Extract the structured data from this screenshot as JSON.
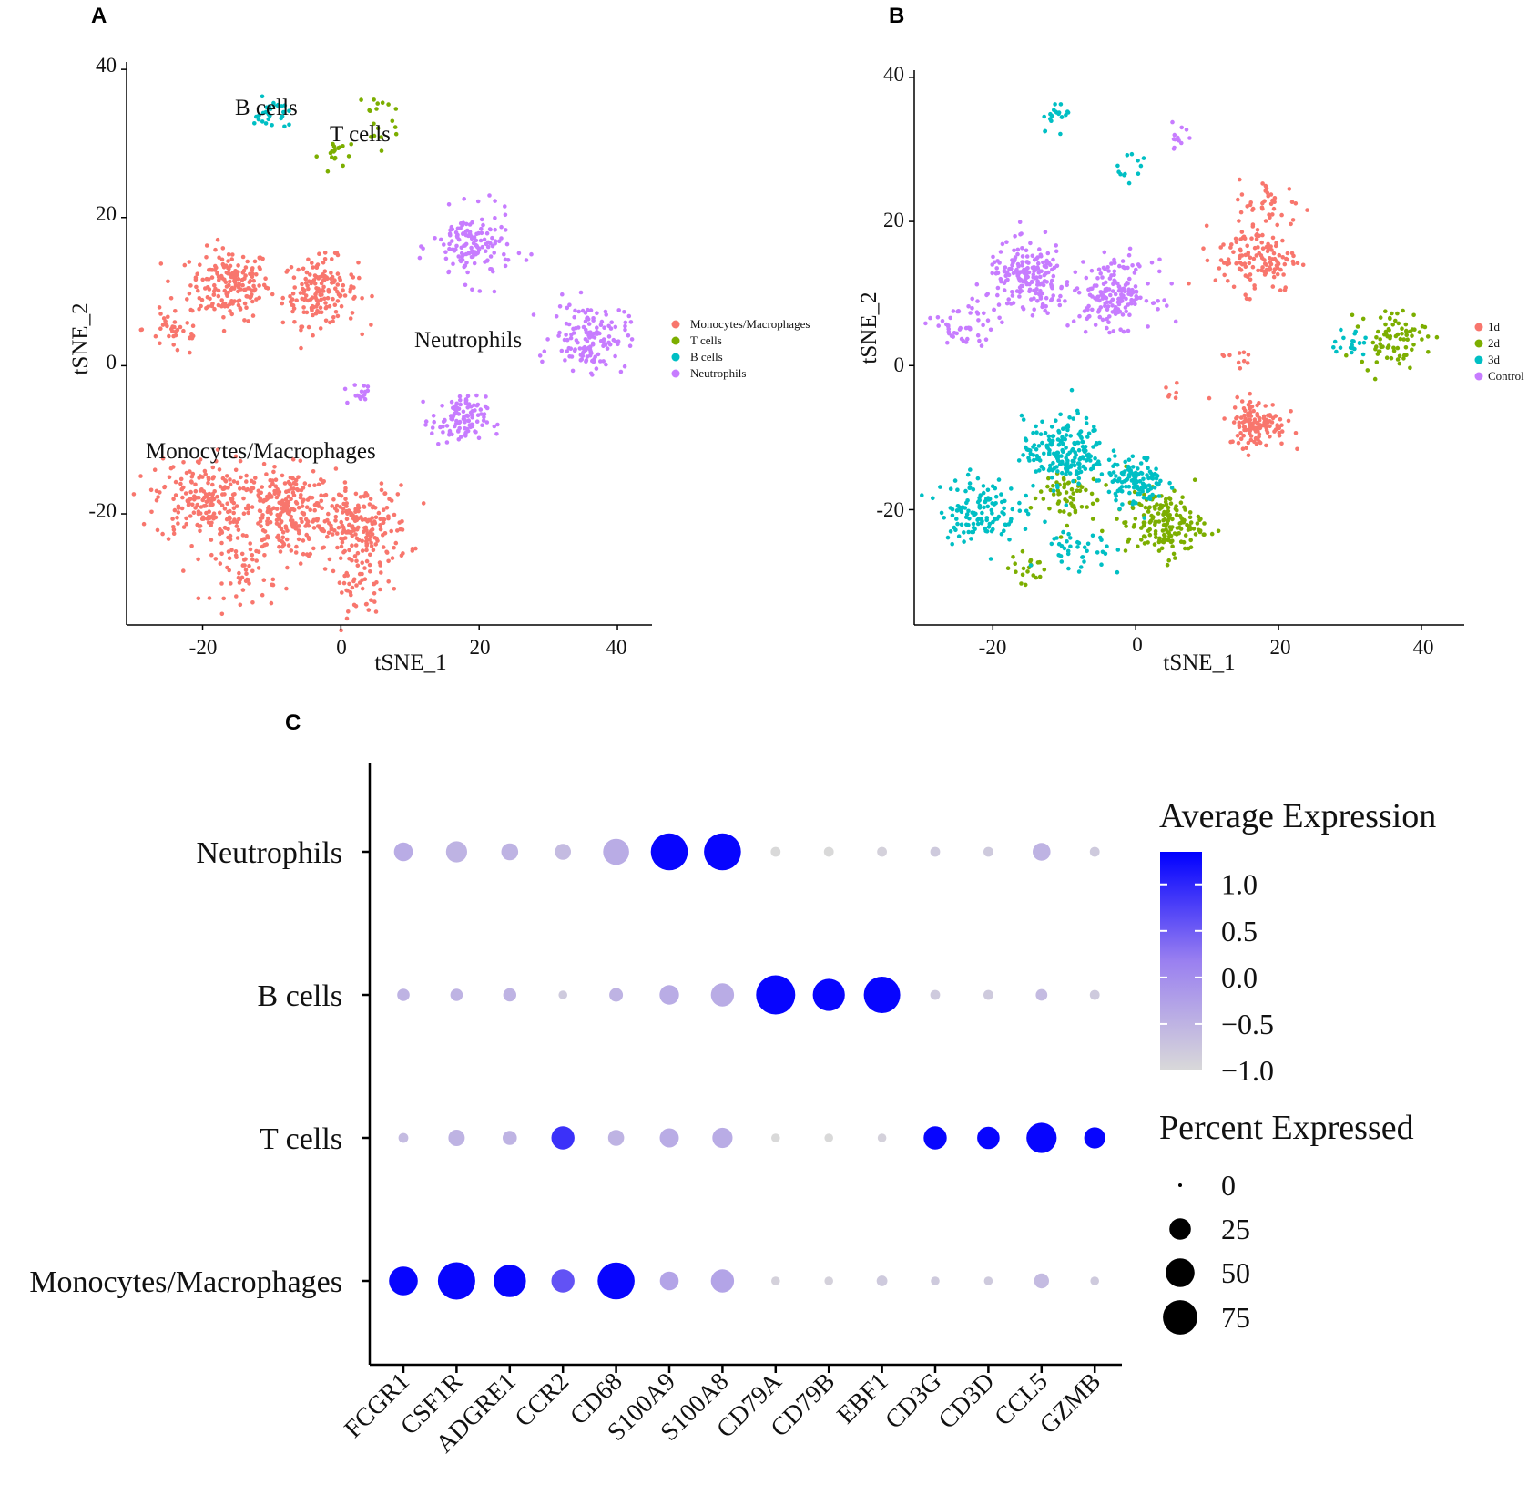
{
  "panels": {
    "A": {
      "letter": "A",
      "xlabel": "tSNE_1",
      "ylabel": "tSNE_2",
      "xticks": [
        "-20",
        "0",
        "20",
        "40"
      ],
      "yticks": [
        "40",
        "20",
        "0",
        "-20"
      ],
      "legend": [
        "Monocytes/Macrophages",
        "T cells",
        "B cells",
        "Neutrophils"
      ],
      "annotations": [
        "B cells",
        "T cells",
        "Neutrophils",
        "Monocytes/Macrophages"
      ]
    },
    "B": {
      "letter": "B",
      "xlabel": "tSNE_1",
      "ylabel": "tSNE_2",
      "xticks": [
        "-20",
        "0",
        "20",
        "40"
      ],
      "yticks": [
        "40",
        "20",
        "0",
        "-20"
      ],
      "legend": [
        "1d",
        "2d",
        "3d",
        "Control"
      ]
    },
    "C": {
      "letter": "C"
    }
  },
  "colors": {
    "red": "#F8766D",
    "green": "#7CAE00",
    "teal": "#00BFC4",
    "purple": "#C77CFF",
    "dot_low": "#D9D9D9",
    "dot_high": "#0000FF"
  },
  "chart_data": [
    {
      "type": "scatter",
      "title": "A",
      "xlabel": "tSNE_1",
      "ylabel": "tSNE_2",
      "xlim": [
        -31,
        45
      ],
      "ylim": [
        -35,
        41
      ],
      "legend_entries": [
        "Monocytes/Macrophages",
        "T cells",
        "B cells",
        "Neutrophils"
      ],
      "clusters": [
        {
          "name": "Monocytes/Macrophages",
          "color": "red",
          "centers": [
            [
              -16,
              11
            ],
            [
              -3,
              10
            ],
            [
              -24,
              5
            ],
            [
              -8,
              -20
            ],
            [
              -20,
              -18
            ],
            [
              3,
              -22
            ],
            [
              -14,
              -28
            ],
            [
              3,
              -30
            ]
          ],
          "n": [
            180,
            170,
            40,
            260,
            200,
            200,
            50,
            40
          ]
        },
        {
          "name": "T cells",
          "color": "green",
          "centers": [
            [
              -0.5,
              28.5
            ],
            [
              4.5,
              35
            ],
            [
              6,
              31.5
            ]
          ],
          "n": [
            18,
            10,
            8
          ]
        },
        {
          "name": "B cells",
          "color": "teal",
          "centers": [
            [
              -10,
              34
            ]
          ],
          "n": [
            30
          ]
        },
        {
          "name": "Neutrophils",
          "color": "purple",
          "centers": [
            [
              19,
              16
            ],
            [
              36,
              4
            ],
            [
              17,
              -7.5
            ],
            [
              3,
              -3.5
            ]
          ],
          "n": [
            140,
            140,
            110,
            15
          ]
        }
      ]
    },
    {
      "type": "scatter",
      "title": "B",
      "xlabel": "tSNE_1",
      "ylabel": "tSNE_2",
      "xlim": [
        -31,
        46
      ],
      "ylim": [
        -36,
        41
      ],
      "legend_entries": [
        "1d",
        "2d",
        "3d",
        "Control"
      ],
      "clusters": [
        {
          "name": "1d",
          "color": "red",
          "centers": [
            [
              17,
              15
            ],
            [
              19,
              22
            ],
            [
              17,
              -8
            ],
            [
              14,
              1
            ],
            [
              5,
              -4
            ]
          ],
          "n": [
            130,
            40,
            130,
            10,
            6
          ]
        },
        {
          "name": "2d",
          "color": "green",
          "centers": [
            [
              36,
              4
            ],
            [
              4,
              -22
            ],
            [
              -10,
              -18
            ],
            [
              -15,
              -28
            ]
          ],
          "n": [
            80,
            170,
            60,
            20
          ]
        },
        {
          "name": "3d",
          "color": "teal",
          "centers": [
            [
              -10,
              -12
            ],
            [
              -22,
              -20
            ],
            [
              0,
              -16
            ],
            [
              -8,
              -26
            ],
            [
              30,
              3
            ],
            [
              -11,
              35
            ],
            [
              0,
              28
            ]
          ],
          "n": [
            200,
            130,
            120,
            40,
            20,
            20,
            12
          ]
        },
        {
          "name": "Control",
          "color": "purple",
          "centers": [
            [
              -15,
              12
            ],
            [
              -3,
              10
            ],
            [
              -24,
              5
            ],
            [
              6,
              32
            ]
          ],
          "n": [
            200,
            180,
            50,
            12
          ]
        }
      ]
    },
    {
      "type": "dot",
      "title": "C",
      "genes": [
        "FCGR1",
        "CSF1R",
        "ADGRE1",
        "CCR2",
        "CD68",
        "S100A9",
        "S100A8",
        "CD79A",
        "CD79B",
        "EBF1",
        "CD3G",
        "CD3D",
        "CCL5",
        "GZMB"
      ],
      "groups": [
        "Neutrophils",
        "B cells",
        "T cells",
        "Monocytes/Macrophages"
      ],
      "avg_expression": [
        [
          -0.4,
          -0.5,
          -0.5,
          -0.6,
          -0.4,
          1.3,
          1.3,
          -1.0,
          -1.0,
          -0.9,
          -0.8,
          -0.8,
          -0.5,
          -0.8
        ],
        [
          -0.5,
          -0.5,
          -0.5,
          -0.8,
          -0.5,
          -0.4,
          -0.4,
          1.3,
          1.3,
          1.3,
          -0.8,
          -0.8,
          -0.6,
          -0.8
        ],
        [
          -0.6,
          -0.5,
          -0.5,
          0.9,
          -0.5,
          -0.4,
          -0.4,
          -1.0,
          -1.0,
          -0.9,
          1.3,
          1.3,
          1.3,
          1.3
        ],
        [
          1.3,
          1.3,
          1.3,
          0.6,
          1.3,
          -0.3,
          -0.3,
          -0.9,
          -0.9,
          -0.8,
          -0.8,
          -0.8,
          -0.6,
          -0.8
        ]
      ],
      "pct_expressed": [
        [
          18,
          24,
          14,
          12,
          40,
          88,
          88,
          3,
          3,
          3,
          3,
          3,
          16,
          3
        ],
        [
          6,
          6,
          7,
          2,
          8,
          20,
          30,
          100,
          64,
          85,
          3,
          3,
          5,
          3
        ],
        [
          3,
          13,
          9,
          30,
          12,
          19,
          22,
          2,
          2,
          2,
          30,
          28,
          56,
          24
        ],
        [
          50,
          90,
          66,
          30,
          88,
          18,
          30,
          2,
          2,
          4,
          2,
          2,
          10,
          2
        ]
      ],
      "color_title": "Average Expression",
      "color_ticks": [
        "1.0",
        "0.5",
        "0.0",
        "−0.5",
        "−1.0"
      ],
      "color_tick_values": [
        1.0,
        0.5,
        0.0,
        -0.5,
        -1.0
      ],
      "color_range": [
        -1.0,
        1.35
      ],
      "size_title": "Percent Expressed",
      "size_ticks": [
        "0",
        "25",
        "50",
        "75"
      ],
      "size_tick_values": [
        0,
        25,
        50,
        75
      ]
    }
  ]
}
